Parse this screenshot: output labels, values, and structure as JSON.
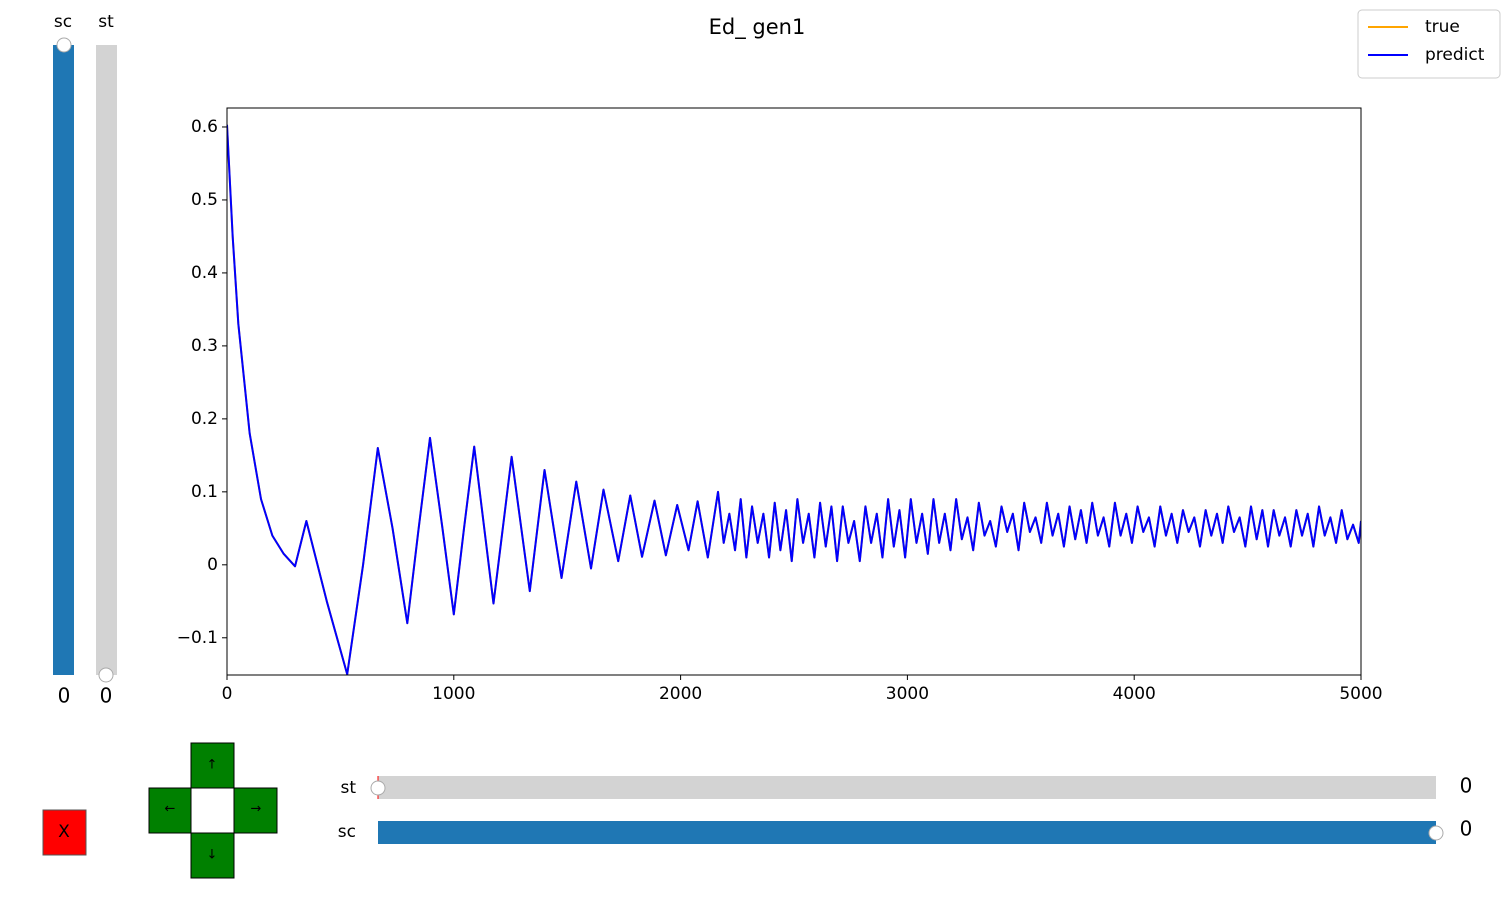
{
  "chart_data": {
    "type": "line",
    "title": "Ed_ gen1",
    "x": [
      0,
      25,
      50,
      100,
      150,
      200,
      250,
      300,
      350,
      440,
      530,
      600,
      665,
      730,
      795,
      845,
      895,
      950,
      1000,
      1045,
      1090,
      1175,
      1255,
      1335,
      1400,
      1475,
      1540,
      1605,
      1660,
      1725,
      1778,
      1830,
      1885,
      1935,
      1985,
      2035,
      2075,
      2120,
      2165,
      2190,
      2215,
      2240,
      2265,
      2290,
      2315,
      2340,
      2365,
      2390,
      2415,
      2440,
      2465,
      2490,
      2515,
      2540,
      2565,
      2590,
      2615,
      2640,
      2665,
      2690,
      2715,
      2740,
      2765,
      2790,
      2815,
      2840,
      2865,
      2890,
      2915,
      2940,
      2965,
      2990,
      3015,
      3040,
      3065,
      3090,
      3115,
      3140,
      3165,
      3190,
      3215,
      3240,
      3265,
      3290,
      3315,
      3340,
      3365,
      3390,
      3415,
      3440,
      3465,
      3490,
      3515,
      3540,
      3565,
      3590,
      3615,
      3640,
      3665,
      3690,
      3715,
      3740,
      3765,
      3790,
      3815,
      3840,
      3865,
      3890,
      3915,
      3940,
      3965,
      3990,
      4015,
      4040,
      4065,
      4090,
      4115,
      4140,
      4165,
      4190,
      4215,
      4240,
      4265,
      4290,
      4315,
      4340,
      4365,
      4390,
      4415,
      4440,
      4465,
      4490,
      4515,
      4540,
      4565,
      4590,
      4615,
      4640,
      4665,
      4690,
      4715,
      4740,
      4765,
      4790,
      4815,
      4840,
      4865,
      4890,
      4915,
      4940,
      4965,
      4990,
      5000
    ],
    "series": [
      {
        "name": "true",
        "color": "#ffa500",
        "values": [
          0.603,
          0.45,
          0.33,
          0.18,
          0.09,
          0.04,
          0.015,
          -0.002,
          0.06,
          -0.05,
          -0.15,
          0.0,
          0.16,
          0.05,
          -0.08,
          0.05,
          0.174,
          0.05,
          -0.068,
          0.05,
          0.162,
          -0.053,
          0.148,
          -0.036,
          0.13,
          -0.018,
          0.114,
          -0.005,
          0.103,
          0.005,
          0.095,
          0.011,
          0.088,
          0.013,
          0.082,
          0.02,
          0.087,
          0.01,
          0.1,
          0.03,
          0.07,
          0.02,
          0.09,
          0.01,
          0.08,
          0.03,
          0.07,
          0.01,
          0.085,
          0.02,
          0.075,
          0.005,
          0.09,
          0.03,
          0.07,
          0.01,
          0.085,
          0.025,
          0.08,
          0.005,
          0.08,
          0.03,
          0.06,
          0.005,
          0.08,
          0.03,
          0.07,
          0.01,
          0.09,
          0.025,
          0.075,
          0.01,
          0.09,
          0.03,
          0.07,
          0.015,
          0.09,
          0.03,
          0.07,
          0.02,
          0.09,
          0.035,
          0.065,
          0.02,
          0.085,
          0.04,
          0.06,
          0.025,
          0.08,
          0.045,
          0.07,
          0.02,
          0.085,
          0.045,
          0.065,
          0.03,
          0.085,
          0.04,
          0.07,
          0.025,
          0.08,
          0.035,
          0.075,
          0.03,
          0.085,
          0.04,
          0.065,
          0.025,
          0.085,
          0.04,
          0.07,
          0.03,
          0.08,
          0.045,
          0.065,
          0.025,
          0.08,
          0.04,
          0.07,
          0.03,
          0.075,
          0.045,
          0.065,
          0.025,
          0.075,
          0.04,
          0.07,
          0.03,
          0.08,
          0.045,
          0.065,
          0.025,
          0.08,
          0.035,
          0.075,
          0.025,
          0.075,
          0.04,
          0.065,
          0.025,
          0.075,
          0.04,
          0.07,
          0.025,
          0.08,
          0.04,
          0.065,
          0.03,
          0.075,
          0.035,
          0.055,
          0.03,
          0.06
        ]
      },
      {
        "name": "predict",
        "color": "#0000ff",
        "values": [
          0.603,
          0.45,
          0.33,
          0.18,
          0.09,
          0.04,
          0.015,
          -0.002,
          0.06,
          -0.05,
          -0.15,
          0.0,
          0.16,
          0.05,
          -0.08,
          0.05,
          0.174,
          0.05,
          -0.068,
          0.05,
          0.162,
          -0.053,
          0.148,
          -0.036,
          0.13,
          -0.018,
          0.114,
          -0.005,
          0.103,
          0.005,
          0.095,
          0.011,
          0.088,
          0.013,
          0.082,
          0.02,
          0.087,
          0.01,
          0.1,
          0.03,
          0.07,
          0.02,
          0.09,
          0.01,
          0.08,
          0.03,
          0.07,
          0.01,
          0.085,
          0.02,
          0.075,
          0.005,
          0.09,
          0.03,
          0.07,
          0.01,
          0.085,
          0.025,
          0.08,
          0.005,
          0.08,
          0.03,
          0.06,
          0.005,
          0.08,
          0.03,
          0.07,
          0.01,
          0.09,
          0.025,
          0.075,
          0.01,
          0.09,
          0.03,
          0.07,
          0.015,
          0.09,
          0.03,
          0.07,
          0.02,
          0.09,
          0.035,
          0.065,
          0.02,
          0.085,
          0.04,
          0.06,
          0.025,
          0.08,
          0.045,
          0.07,
          0.02,
          0.085,
          0.045,
          0.065,
          0.03,
          0.085,
          0.04,
          0.07,
          0.025,
          0.08,
          0.035,
          0.075,
          0.03,
          0.085,
          0.04,
          0.065,
          0.025,
          0.085,
          0.04,
          0.07,
          0.03,
          0.08,
          0.045,
          0.065,
          0.025,
          0.08,
          0.04,
          0.07,
          0.03,
          0.075,
          0.045,
          0.065,
          0.025,
          0.075,
          0.04,
          0.07,
          0.03,
          0.08,
          0.045,
          0.065,
          0.025,
          0.08,
          0.035,
          0.075,
          0.025,
          0.075,
          0.04,
          0.065,
          0.025,
          0.075,
          0.04,
          0.07,
          0.025,
          0.08,
          0.04,
          0.065,
          0.03,
          0.075,
          0.035,
          0.055,
          0.03,
          0.06
        ]
      }
    ],
    "xlim": [
      0,
      5000
    ],
    "xticks": [
      0,
      1000,
      2000,
      3000,
      4000,
      5000
    ],
    "ylim": [
      -0.151,
      0.626
    ],
    "yticks": [
      {
        "value": -0.1,
        "label": "−0.1"
      },
      0.0,
      0.1,
      0.2,
      0.3,
      0.4,
      0.5,
      0.6
    ],
    "legend": "upper right"
  },
  "controls": {
    "vertical_sliders": [
      {
        "label": "sc",
        "value": 0
      },
      {
        "label": "st",
        "value": 0
      }
    ],
    "horizontal_sliders": [
      {
        "label": "st",
        "value": 0
      },
      {
        "label": "sc",
        "value": 0
      }
    ],
    "close_button": "X",
    "arrows": {
      "up": "↑",
      "left": "←",
      "right": "→",
      "down": "↓"
    }
  }
}
